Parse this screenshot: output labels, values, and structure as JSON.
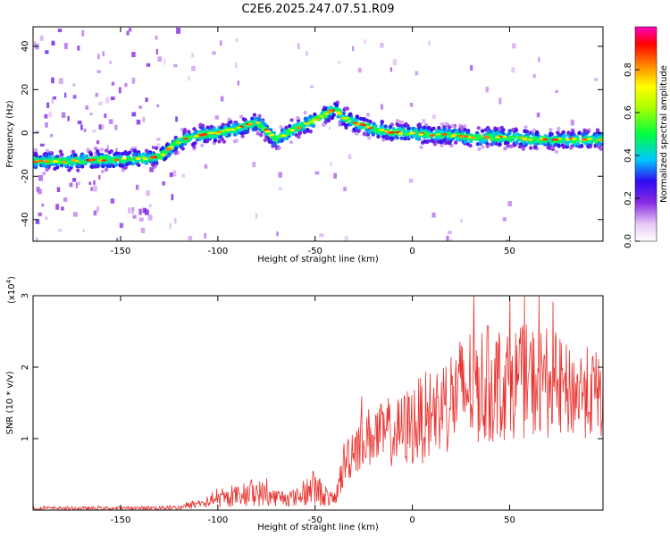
{
  "title": "C2E6.2025.247.07.51.R09",
  "chart_data": [
    {
      "type": "heatmap",
      "xlabel": "Height of straight line (km)",
      "ylabel": "Frequency (Hz)",
      "xlim": [
        -195,
        98
      ],
      "ylim": [
        -50,
        49
      ],
      "xticks": [
        -150,
        -100,
        -50,
        0,
        50
      ],
      "yticks": [
        -40,
        -20,
        0,
        20,
        40
      ],
      "ridge": {
        "x": [
          -195,
          -180,
          -160,
          -140,
          -130,
          -120,
          -110,
          -100,
          -90,
          -80,
          -70,
          -60,
          -50,
          -40,
          -35,
          -30,
          -20,
          -10,
          0,
          10,
          20,
          30,
          40,
          50,
          60,
          70,
          80,
          90,
          98
        ],
        "y": [
          -13,
          -13,
          -12.5,
          -12,
          -11,
          -4,
          -1,
          0,
          2,
          5,
          -3,
          2,
          6,
          11,
          7,
          5,
          2,
          0,
          0,
          -1,
          -1,
          -2,
          -2,
          -2,
          -3,
          -3,
          -3,
          -3,
          -3
        ]
      },
      "colorbar": {
        "label": "Normalized spectral amplitude",
        "range": [
          0,
          1
        ],
        "ticks": [
          "0.0",
          "0.2",
          "0.4",
          "0.6",
          "0.8"
        ]
      }
    },
    {
      "type": "line",
      "xlabel": "Height of straight line (km)",
      "ylabel": "SNR (10 * v/v)",
      "y_multiplier": "(x10",
      "y_multiplier_exp": "4",
      "y_multiplier_close": ")",
      "xlim": [
        -195,
        98
      ],
      "ylim": [
        0,
        3
      ],
      "xticks": [
        -150,
        -100,
        -50,
        0,
        50
      ],
      "yticks": [
        1,
        2,
        3
      ],
      "color": "#e8322e",
      "envelope": {
        "x": [
          -195,
          -150,
          -120,
          -110,
          -100,
          -90,
          -80,
          -70,
          -60,
          -50,
          -40,
          -35,
          -30,
          -20,
          -10,
          0,
          10,
          20,
          30,
          40,
          50,
          60,
          70,
          80,
          90,
          98
        ],
        "low": [
          0.0,
          0.0,
          0.0,
          0.02,
          0.03,
          0.05,
          0.05,
          0.05,
          0.05,
          0.05,
          0.05,
          0.3,
          0.5,
          0.6,
          0.6,
          0.6,
          0.7,
          0.8,
          0.9,
          0.9,
          1.0,
          1.0,
          1.0,
          1.0,
          1.0,
          1.0
        ],
        "high": [
          0.05,
          0.05,
          0.07,
          0.15,
          0.25,
          0.35,
          0.45,
          0.3,
          0.3,
          0.55,
          0.2,
          1.0,
          1.3,
          1.5,
          1.5,
          1.8,
          2.0,
          2.3,
          2.6,
          2.6,
          2.6,
          2.6,
          2.6,
          2.3,
          2.3,
          2.2
        ]
      }
    }
  ]
}
